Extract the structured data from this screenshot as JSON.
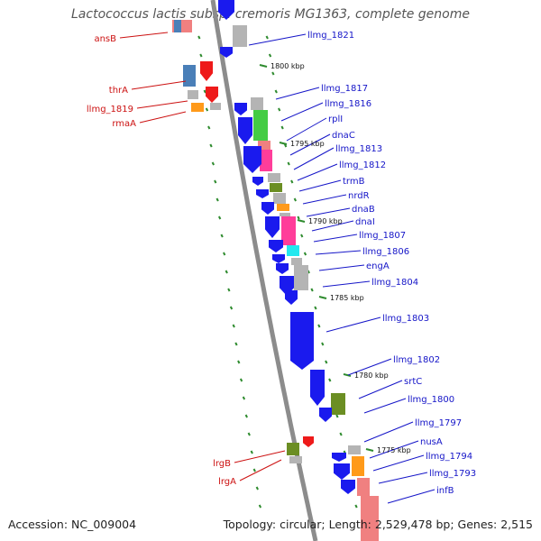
{
  "title": "Lactococcus lactis subsp. cremoris MG1363, complete genome",
  "footer": {
    "accession": "Accession: NC_009004",
    "topology": "Topology: circular; Length: 2,529,478 bp; Genes: 2,515"
  },
  "colors": {
    "forward_label": "#1515c8",
    "reverse_label": "#cc1111",
    "backbone": "#8c8c8c",
    "tick_marks": "#2e8b2e",
    "gene_blue": "#1a1aee",
    "gene_red": "#ee1a1a",
    "gene_gray": "#b4b4b4",
    "gene_green": "#44cc44",
    "gene_olive": "#6b8e23",
    "gene_pink": "#ff3d9a",
    "gene_salmon": "#f08080",
    "gene_orange": "#ff9a1a",
    "gene_cyan": "#22e8ee",
    "gene_steel": "#4a7fb8"
  },
  "position_ticks": [
    "1800 kbp",
    "1795 kbp",
    "1790 kbp",
    "1785 kbp",
    "1780 kbp",
    "1775 kbp"
  ],
  "forward_labels": [
    "llmg_1821",
    "llmg_1817",
    "llmg_1816",
    "rplI",
    "dnaC",
    "llmg_1813",
    "llmg_1812",
    "trmB",
    "nrdR",
    "dnaB",
    "dnaI",
    "llmg_1807",
    "llmg_1806",
    "engA",
    "llmg_1804",
    "llmg_1803",
    "llmg_1802",
    "srtC",
    "llmg_1800",
    "llmg_1797",
    "nusA",
    "llmg_1794",
    "llmg_1793",
    "infB"
  ],
  "reverse_labels": [
    "ansB",
    "thrA",
    "llmg_1819",
    "rmaA",
    "lrgB",
    "lrgA"
  ]
}
